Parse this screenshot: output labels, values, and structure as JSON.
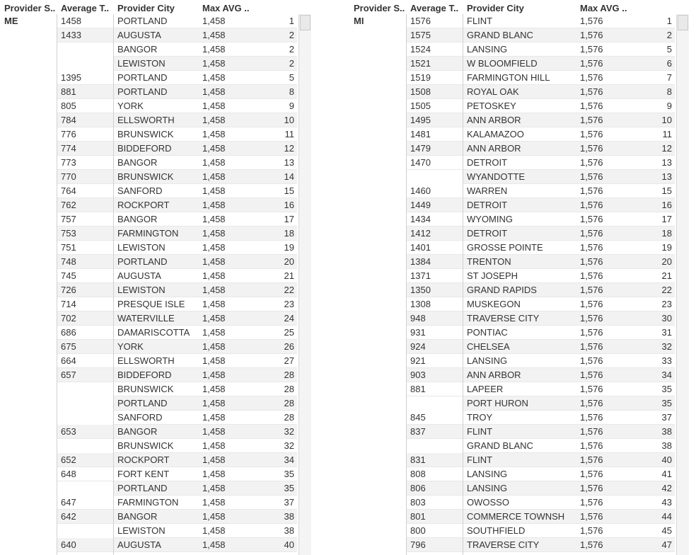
{
  "headers": {
    "provider_state": "Provider S..",
    "average": "Average T..",
    "city": "Provider City",
    "max_avg": "Max AVG .."
  },
  "left": {
    "state": "ME",
    "max_avg": "1,458",
    "rows": [
      {
        "avg": "1458",
        "city": "PORTLAND",
        "rank": "1"
      },
      {
        "avg": "1433",
        "city": "AUGUSTA",
        "rank": "2"
      },
      {
        "avg": "",
        "city": "BANGOR",
        "rank": "2"
      },
      {
        "avg": "",
        "city": "LEWISTON",
        "rank": "2"
      },
      {
        "avg": "1395",
        "city": "PORTLAND",
        "rank": "5"
      },
      {
        "avg": "881",
        "city": "PORTLAND",
        "rank": "8"
      },
      {
        "avg": "805",
        "city": "YORK",
        "rank": "9"
      },
      {
        "avg": "784",
        "city": "ELLSWORTH",
        "rank": "10"
      },
      {
        "avg": "776",
        "city": "BRUNSWICK",
        "rank": "11"
      },
      {
        "avg": "774",
        "city": "BIDDEFORD",
        "rank": "12"
      },
      {
        "avg": "773",
        "city": "BANGOR",
        "rank": "13"
      },
      {
        "avg": "770",
        "city": "BRUNSWICK",
        "rank": "14"
      },
      {
        "avg": "764",
        "city": "SANFORD",
        "rank": "15"
      },
      {
        "avg": "762",
        "city": "ROCKPORT",
        "rank": "16"
      },
      {
        "avg": "757",
        "city": "BANGOR",
        "rank": "17"
      },
      {
        "avg": "753",
        "city": "FARMINGTON",
        "rank": "18"
      },
      {
        "avg": "751",
        "city": "LEWISTON",
        "rank": "19"
      },
      {
        "avg": "748",
        "city": "PORTLAND",
        "rank": "20"
      },
      {
        "avg": "745",
        "city": "AUGUSTA",
        "rank": "21"
      },
      {
        "avg": "726",
        "city": "LEWISTON",
        "rank": "22"
      },
      {
        "avg": "714",
        "city": "PRESQUE ISLE",
        "rank": "23"
      },
      {
        "avg": "702",
        "city": "WATERVILLE",
        "rank": "24"
      },
      {
        "avg": "686",
        "city": "DAMARISCOTTA",
        "rank": "25"
      },
      {
        "avg": "675",
        "city": "YORK",
        "rank": "26"
      },
      {
        "avg": "664",
        "city": "ELLSWORTH",
        "rank": "27"
      },
      {
        "avg": "657",
        "city": "BIDDEFORD",
        "rank": "28"
      },
      {
        "avg": "",
        "city": "BRUNSWICK",
        "rank": "28"
      },
      {
        "avg": "",
        "city": "PORTLAND",
        "rank": "28"
      },
      {
        "avg": "",
        "city": "SANFORD",
        "rank": "28"
      },
      {
        "avg": "653",
        "city": "BANGOR",
        "rank": "32"
      },
      {
        "avg": "",
        "city": "BRUNSWICK",
        "rank": "32"
      },
      {
        "avg": "652",
        "city": "ROCKPORT",
        "rank": "34"
      },
      {
        "avg": "648",
        "city": "FORT KENT",
        "rank": "35"
      },
      {
        "avg": "",
        "city": "PORTLAND",
        "rank": "35"
      },
      {
        "avg": "647",
        "city": "FARMINGTON",
        "rank": "37"
      },
      {
        "avg": "642",
        "city": "BANGOR",
        "rank": "38"
      },
      {
        "avg": "",
        "city": "LEWISTON",
        "rank": "38"
      },
      {
        "avg": "640",
        "city": "AUGUSTA",
        "rank": "40"
      }
    ]
  },
  "right": {
    "state": "MI",
    "max_avg": "1,576",
    "rows": [
      {
        "avg": "1576",
        "city": "FLINT",
        "rank": "1"
      },
      {
        "avg": "1575",
        "city": "GRAND BLANC",
        "rank": "2"
      },
      {
        "avg": "1524",
        "city": "LANSING",
        "rank": "5"
      },
      {
        "avg": "1521",
        "city": "W BLOOMFIELD",
        "rank": "6"
      },
      {
        "avg": "1519",
        "city": "FARMINGTON HILL",
        "rank": "7"
      },
      {
        "avg": "1508",
        "city": "ROYAL OAK",
        "rank": "8"
      },
      {
        "avg": "1505",
        "city": "PETOSKEY",
        "rank": "9"
      },
      {
        "avg": "1495",
        "city": "ANN ARBOR",
        "rank": "10"
      },
      {
        "avg": "1481",
        "city": "KALAMAZOO",
        "rank": "11"
      },
      {
        "avg": "1479",
        "city": "ANN ARBOR",
        "rank": "12"
      },
      {
        "avg": "1470",
        "city": "DETROIT",
        "rank": "13"
      },
      {
        "avg": "",
        "city": "WYANDOTTE",
        "rank": "13"
      },
      {
        "avg": "1460",
        "city": "WARREN",
        "rank": "15"
      },
      {
        "avg": "1449",
        "city": "DETROIT",
        "rank": "16"
      },
      {
        "avg": "1434",
        "city": "WYOMING",
        "rank": "17"
      },
      {
        "avg": "1412",
        "city": "DETROIT",
        "rank": "18"
      },
      {
        "avg": "1401",
        "city": "GROSSE POINTE",
        "rank": "19"
      },
      {
        "avg": "1384",
        "city": "TRENTON",
        "rank": "20"
      },
      {
        "avg": "1371",
        "city": "ST JOSEPH",
        "rank": "21"
      },
      {
        "avg": "1350",
        "city": "GRAND RAPIDS",
        "rank": "22"
      },
      {
        "avg": "1308",
        "city": "MUSKEGON",
        "rank": "23"
      },
      {
        "avg": "948",
        "city": "TRAVERSE CITY",
        "rank": "30"
      },
      {
        "avg": "931",
        "city": "PONTIAC",
        "rank": "31"
      },
      {
        "avg": "924",
        "city": "CHELSEA",
        "rank": "32"
      },
      {
        "avg": "921",
        "city": "LANSING",
        "rank": "33"
      },
      {
        "avg": "903",
        "city": "ANN ARBOR",
        "rank": "34"
      },
      {
        "avg": "881",
        "city": "LAPEER",
        "rank": "35"
      },
      {
        "avg": "",
        "city": "PORT HURON",
        "rank": "35"
      },
      {
        "avg": "845",
        "city": "TROY",
        "rank": "37"
      },
      {
        "avg": "837",
        "city": "FLINT",
        "rank": "38"
      },
      {
        "avg": "",
        "city": "GRAND BLANC",
        "rank": "38"
      },
      {
        "avg": "831",
        "city": "FLINT",
        "rank": "40"
      },
      {
        "avg": "808",
        "city": "LANSING",
        "rank": "41"
      },
      {
        "avg": "806",
        "city": "LANSING",
        "rank": "42"
      },
      {
        "avg": "803",
        "city": "OWOSSO",
        "rank": "43"
      },
      {
        "avg": "801",
        "city": "COMMERCE TOWNSH",
        "rank": "44"
      },
      {
        "avg": "800",
        "city": "SOUTHFIELD",
        "rank": "45"
      },
      {
        "avg": "796",
        "city": "TRAVERSE CITY",
        "rank": "47"
      }
    ]
  }
}
